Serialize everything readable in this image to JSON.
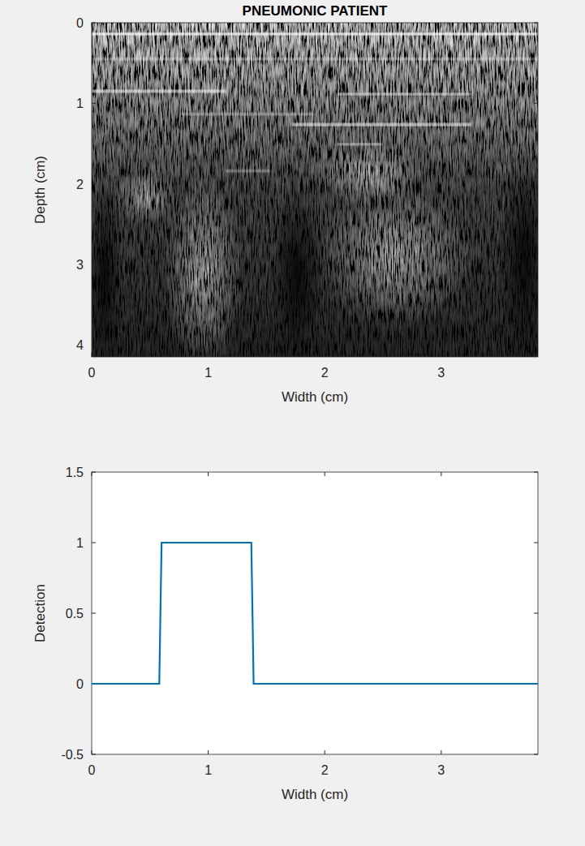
{
  "chart_data": [
    {
      "type": "image",
      "title": "PNEUMONIC PATIENT",
      "xlabel": "Width (cm)",
      "ylabel": "Depth (cm)",
      "xlim": [
        0,
        3.83
      ],
      "ylim": [
        4.15,
        0
      ],
      "xticks": [
        0,
        1,
        2,
        3
      ],
      "yticks": [
        0,
        1,
        2,
        3,
        4
      ],
      "grid": false
    },
    {
      "type": "line",
      "xlabel": "Width (cm)",
      "ylabel": "Detection",
      "x": [
        0,
        0.58,
        0.6,
        1.37,
        1.39,
        3.83
      ],
      "values": [
        0,
        0,
        1,
        1,
        0,
        0
      ],
      "color": "#0072bd",
      "xlim": [
        0,
        3.83
      ],
      "ylim": [
        -0.5,
        1.5
      ],
      "xticks": [
        0,
        1,
        2,
        3
      ],
      "yticks": [
        -0.5,
        0,
        0.5,
        1,
        1.5
      ],
      "grid": false
    }
  ]
}
